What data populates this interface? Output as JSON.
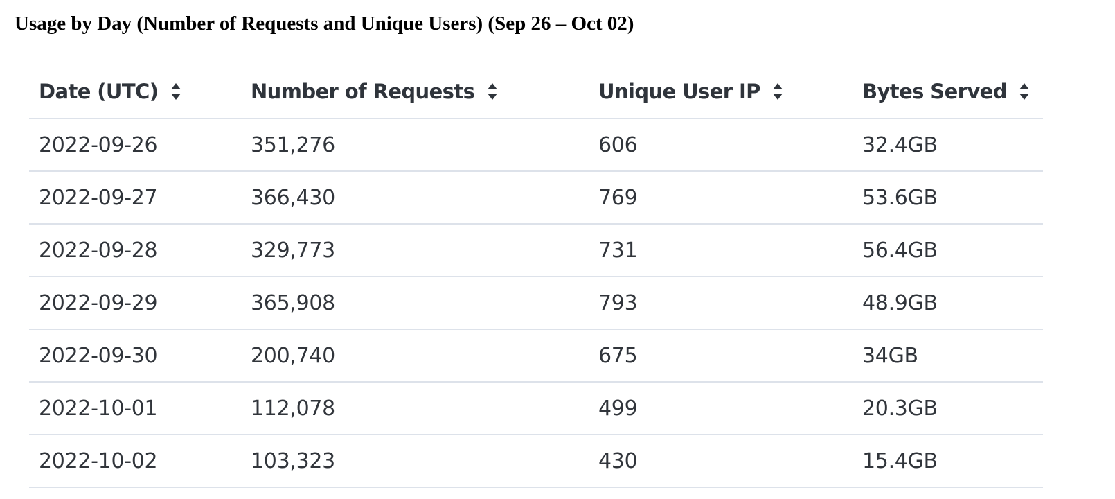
{
  "page": {
    "title": "Usage by Day (Number of Requests and Unique Users) (Sep 26 – Oct 02)"
  },
  "table": {
    "columns": [
      {
        "label": "Date (UTC)",
        "sort_icon": "sort-icon"
      },
      {
        "label": "Number of Requests",
        "sort_icon": "sort-icon"
      },
      {
        "label": "Unique User IP",
        "sort_icon": "sort-icon"
      },
      {
        "label": "Bytes Served",
        "sort_icon": "sort-icon"
      }
    ],
    "rows": [
      [
        "2022-09-26",
        "351,276",
        "606",
        "32.4GB"
      ],
      [
        "2022-09-27",
        "366,430",
        "769",
        "53.6GB"
      ],
      [
        "2022-09-28",
        "329,773",
        "731",
        "56.4GB"
      ],
      [
        "2022-09-29",
        "365,908",
        "793",
        "48.9GB"
      ],
      [
        "2022-09-30",
        "200,740",
        "675",
        "34GB"
      ],
      [
        "2022-10-01",
        "112,078",
        "499",
        "20.3GB"
      ],
      [
        "2022-10-02",
        "103,323",
        "430",
        "15.4GB"
      ]
    ]
  },
  "colors": {
    "text": "#31353b",
    "header_text": "#2f343b",
    "divider": "#dde2ea"
  }
}
